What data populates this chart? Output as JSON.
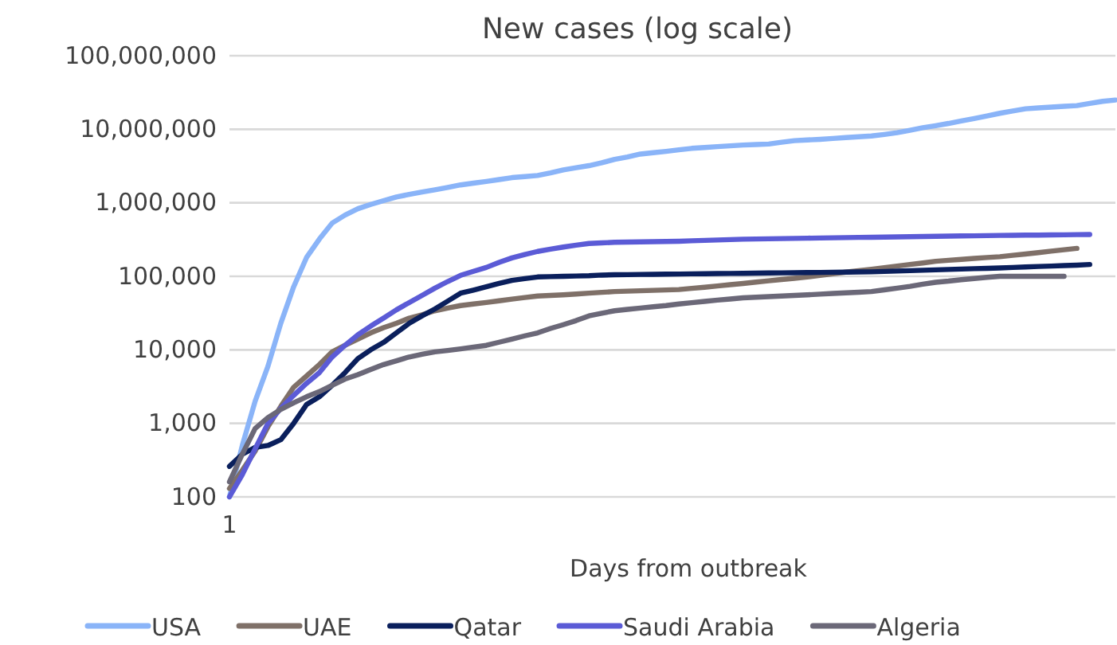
{
  "chart_data": {
    "type": "line",
    "title": "New cases (log scale)",
    "xlabel": "Days from outbreak",
    "categories": [
      "1",
      null,
      null,
      null,
      null,
      null,
      null,
      null,
      null,
      null,
      null,
      null,
      null,
      null,
      null,
      null,
      null,
      null,
      null,
      null,
      null,
      null,
      null,
      null,
      null,
      null,
      null,
      null,
      null,
      null,
      null,
      null,
      null,
      null,
      null,
      null,
      null,
      null,
      null,
      null,
      null,
      null,
      null,
      null,
      null,
      null,
      null,
      null,
      null,
      null,
      null,
      null,
      null,
      null,
      null,
      null,
      null,
      null,
      null,
      null,
      null,
      null,
      null,
      null,
      null,
      null,
      null,
      null,
      null,
      null
    ],
    "series": [
      {
        "name": "USA",
        "color": "#8ab4f8",
        "values": [
          100,
          500,
          2000,
          6000,
          23000,
          72000,
          180000,
          320000,
          530000,
          680000,
          830000,
          950000,
          1070000,
          1200000,
          1300000,
          1400000,
          1500000,
          1620000,
          1750000,
          1850000,
          1950000,
          2070000,
          2200000,
          2270000,
          2350000,
          2550000,
          2800000,
          3000000,
          3200000,
          3500000,
          3900000,
          4200000,
          4600000,
          4800000,
          5000000,
          5250000,
          5500000,
          5650000,
          5800000,
          5950000,
          6100000,
          6200000,
          6300000,
          6650000,
          7000000,
          7150000,
          7300000,
          7500000,
          7700000,
          7900000,
          8100000,
          8500000,
          9000000,
          9700000,
          10500000,
          11200000,
          12000000,
          13000000,
          14000000,
          15200000,
          16500000,
          17700000,
          19000000,
          19500000,
          20000000,
          20500000,
          21000000,
          22500000,
          24000000,
          25000000
        ]
      },
      {
        "name": "UAE",
        "color": "#7f7068",
        "values": [
          130,
          230,
          420,
          900,
          1700,
          3100,
          4400,
          6300,
          9400,
          11500,
          14000,
          17000,
          20000,
          23000,
          27000,
          30000,
          34000,
          37000,
          40000,
          42000,
          44000,
          46500,
          49000,
          51500,
          54000,
          55000,
          56000,
          57500,
          59000,
          60500,
          62000,
          62800,
          63600,
          64400,
          65200,
          66000,
          68500,
          71000,
          74000,
          77000,
          80000,
          83500,
          87000,
          90500,
          94000,
          98000,
          103000,
          108000,
          114000,
          119000,
          125000,
          131000,
          138000,
          145000,
          152000,
          160000,
          165000,
          170000,
          175000,
          180000,
          185000,
          193000,
          201000,
          210000,
          220000,
          230000,
          240000,
          null,
          null,
          null
        ]
      },
      {
        "name": "Qatar",
        "color": "#0a1f5c",
        "values": [
          260,
          380,
          470,
          500,
          600,
          1000,
          1800,
          2300,
          3300,
          4900,
          7600,
          10000,
          12600,
          17000,
          23000,
          29000,
          36000,
          46000,
          59000,
          65000,
          72000,
          80000,
          88000,
          93000,
          98000,
          99000,
          100000,
          101000,
          102000,
          104000,
          105000,
          105500,
          106000,
          106500,
          107000,
          107500,
          108000,
          108500,
          109000,
          109500,
          110000,
          110500,
          111000,
          111500,
          112000,
          112500,
          113000,
          113500,
          114000,
          114500,
          115000,
          116500,
          118000,
          119500,
          121000,
          122500,
          124000,
          125500,
          127000,
          128500,
          130000,
          132000,
          134000,
          136000,
          138000,
          140000,
          142000,
          145000,
          null,
          null
        ]
      },
      {
        "name": "Saudi Arabia",
        "color": "#5b5bd6",
        "values": [
          100,
          200,
          450,
          1000,
          1600,
          2400,
          3500,
          4900,
          8000,
          11500,
          16000,
          21000,
          27000,
          35000,
          44000,
          55000,
          69000,
          85000,
          103000,
          117000,
          132000,
          155000,
          178000,
          198000,
          218000,
          234000,
          250000,
          265000,
          280000,
          285000,
          290000,
          292000,
          294000,
          296000,
          298000,
          300000,
          304000,
          308000,
          312000,
          316000,
          320000,
          322000,
          324000,
          326000,
          328000,
          330000,
          332000,
          334000,
          336000,
          338000,
          340000,
          342000,
          344000,
          346000,
          348000,
          350000,
          352000,
          354000,
          356000,
          358000,
          360000,
          361000,
          363000,
          364000,
          366000,
          367000,
          369000,
          370000,
          null,
          null
        ]
      },
      {
        "name": "Algeria",
        "color": "#6b6878",
        "values": [
          160,
          380,
          850,
          1200,
          1550,
          1900,
          2300,
          2700,
          3300,
          4000,
          4600,
          5400,
          6300,
          7100,
          8000,
          8700,
          9400,
          9800,
          10300,
          10900,
          11500,
          12700,
          14000,
          15500,
          17000,
          19500,
          22000,
          25000,
          29000,
          31500,
          34000,
          35500,
          37000,
          38500,
          40000,
          42000,
          43800,
          45600,
          47400,
          49200,
          51000,
          52000,
          53000,
          54000,
          55000,
          56000,
          57200,
          58400,
          59600,
          60800,
          62000,
          65500,
          69000,
          73000,
          78000,
          83000,
          86000,
          90000,
          93500,
          97000,
          100000,
          100000,
          100000,
          100000,
          100000,
          100000,
          null,
          null,
          null,
          null
        ]
      }
    ],
    "log": "y",
    "ylim": [
      100,
      100000000
    ],
    "yticks": [
      100,
      {
        "value": 1000,
        "label": "1,000"
      },
      {
        "value": 10000,
        "label": "10,000"
      },
      {
        "value": 100000,
        "label": "100,000"
      },
      {
        "value": 1000000,
        "label": "1,000,000"
      },
      {
        "value": 10000000,
        "label": "10,000,000"
      },
      {
        "value": 100000000,
        "label": "100,000,000"
      }
    ],
    "grid": "y",
    "legend": "bottom"
  }
}
